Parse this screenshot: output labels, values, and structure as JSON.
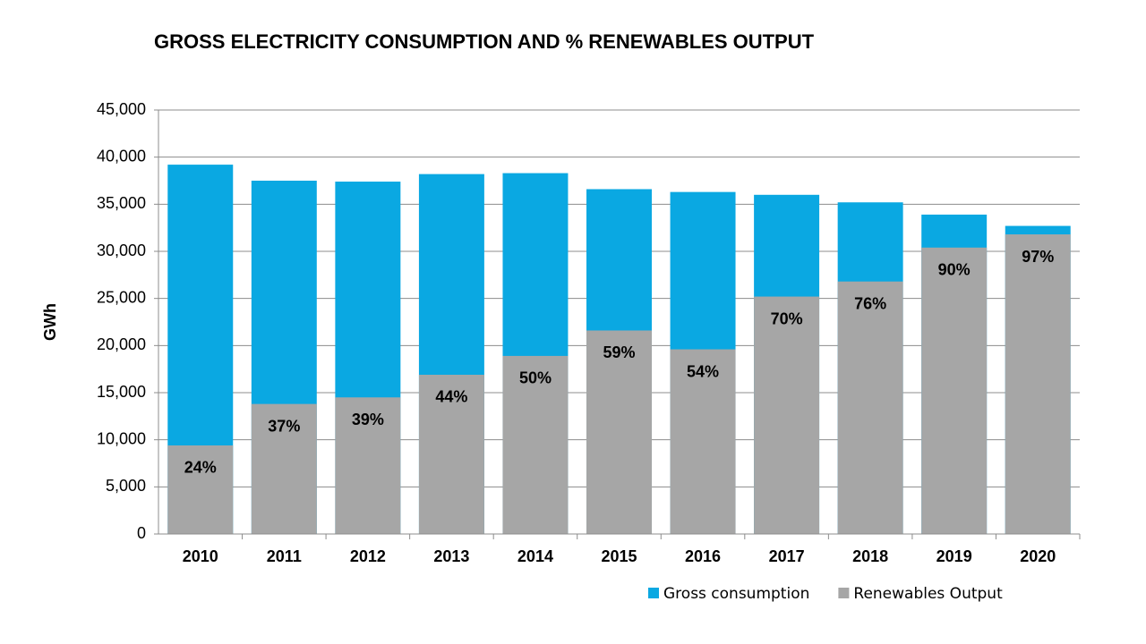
{
  "chart_data": {
    "type": "bar",
    "title": "GROSS ELECTRICITY CONSUMPTION AND % RENEWABLES OUTPUT",
    "y_label": "GWh",
    "categories": [
      "2010",
      "2011",
      "2012",
      "2013",
      "2014",
      "2015",
      "2016",
      "2017",
      "2018",
      "2019",
      "2020"
    ],
    "series": [
      {
        "name": "Gross consumption",
        "color": "#0aa8e2",
        "values": [
          39200,
          37500,
          37400,
          38200,
          38300,
          36600,
          36300,
          36000,
          35200,
          33900,
          32700
        ]
      },
      {
        "name": "Renewables Output",
        "color": "#a6a6a6",
        "values": [
          9400,
          13800,
          14500,
          16900,
          18900,
          21600,
          19600,
          25200,
          26800,
          30400,
          31800
        ]
      }
    ],
    "annotations": [
      "24%",
      "37%",
      "39%",
      "44%",
      "50%",
      "59%",
      "54%",
      "70%",
      "76%",
      "90%",
      "97%"
    ],
    "ylim": [
      0,
      45000
    ],
    "yticks": [
      0,
      {
        "value": 5000,
        "label": "5,000"
      },
      {
        "value": 10000,
        "label": "10,000"
      },
      {
        "value": 15000,
        "label": "15,000"
      },
      {
        "value": 20000,
        "label": "20,000"
      },
      {
        "value": 25000,
        "label": "25,000"
      },
      {
        "value": 30000,
        "label": "30,000"
      },
      {
        "value": 35000,
        "label": "35,000"
      },
      {
        "value": 40000,
        "label": "40,000"
      },
      {
        "value": 45000,
        "label": "45,000"
      }
    ],
    "grid": true,
    "legend": "bottom",
    "overlap": true
  }
}
